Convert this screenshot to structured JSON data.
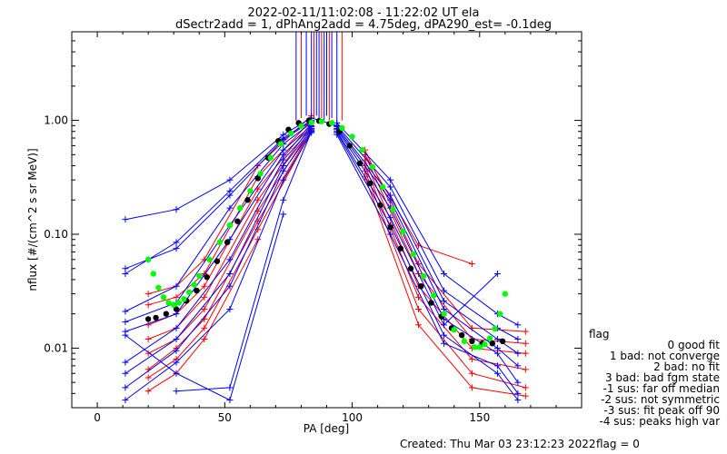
{
  "header": {
    "title": "2022-02-11/11:02:08 - 11:22:02 UT ela",
    "subtitle": "dSectr2add = 1, dPhAng2add = 4.75deg, dPA290_est=  -0.1deg"
  },
  "footer": {
    "created": "Created: Thu Mar 03 23:12:23 2022",
    "flag": "flag = 0"
  },
  "legend": {
    "title": "flag",
    "items": [
      "0 good fit",
      "1 bad: not converge",
      "2 bad: no fit",
      "3 bad: bad fgm state",
      "-1 sus: far off median",
      "-2 sus: not symmetric",
      "-3 sus: fit peak off 90",
      "-4 sus: peaks high var"
    ]
  },
  "colors": {
    "blue_series": "#0000ff",
    "red_series": "#ff0000",
    "black_points": "#000000",
    "green_fit": "#00ff00"
  },
  "chart_data": {
    "type": "line",
    "xlabel": "PA [deg]",
    "ylabel": "nflux [#/(cm^2 s sr MeV)]",
    "xlim": [
      -10,
      190
    ],
    "ylim": [
      0.003,
      6
    ],
    "yscale": "log",
    "xticks": [
      0,
      50,
      100,
      150
    ],
    "yticks": [
      0.01,
      0.1,
      1.0
    ],
    "ytick_labels": [
      "0.01",
      "0.10",
      "1.00"
    ],
    "grid": false,
    "black_points": {
      "x": [
        20,
        23,
        27,
        31,
        35,
        39,
        43,
        47,
        51,
        55,
        59,
        63,
        67,
        71,
        75,
        79,
        83,
        87,
        91,
        95,
        99,
        103,
        107,
        111,
        115,
        119,
        123,
        127,
        131,
        135,
        139,
        143,
        147,
        151,
        155,
        159
      ],
      "y": [
        0.018,
        0.0185,
        0.02,
        0.022,
        0.026,
        0.032,
        0.042,
        0.058,
        0.085,
        0.13,
        0.2,
        0.31,
        0.47,
        0.66,
        0.83,
        0.95,
        1.0,
        0.99,
        0.93,
        0.8,
        0.6,
        0.42,
        0.28,
        0.18,
        0.115,
        0.075,
        0.05,
        0.035,
        0.025,
        0.019,
        0.015,
        0.013,
        0.0115,
        0.011,
        0.011,
        0.0115
      ]
    },
    "green_fit": {
      "x": [
        20,
        22,
        24,
        26,
        28,
        30,
        32,
        34,
        36,
        38,
        40,
        44,
        48,
        52,
        56,
        60,
        64,
        68,
        72,
        76,
        80,
        84,
        88,
        92,
        96,
        100,
        104,
        108,
        112,
        116,
        120,
        124,
        128,
        132,
        136,
        140,
        144,
        148,
        150,
        152,
        154,
        156,
        158,
        160
      ],
      "y": [
        0.06,
        0.045,
        0.034,
        0.028,
        0.025,
        0.024,
        0.025,
        0.027,
        0.031,
        0.036,
        0.043,
        0.06,
        0.085,
        0.12,
        0.17,
        0.24,
        0.34,
        0.47,
        0.62,
        0.77,
        0.89,
        0.96,
        0.98,
        0.95,
        0.86,
        0.72,
        0.55,
        0.39,
        0.26,
        0.165,
        0.105,
        0.067,
        0.043,
        0.029,
        0.02,
        0.0145,
        0.0115,
        0.0102,
        0.0102,
        0.0108,
        0.0122,
        0.0148,
        0.02,
        0.03
      ]
    },
    "blue_series": [
      {
        "x": [
          11,
          31,
          52,
          73,
          84,
          94
        ],
        "y": [
          0.135,
          0.165,
          0.3,
          0.75,
          1.05,
          0.9
        ]
      },
      {
        "x": [
          11,
          31,
          52,
          73,
          84
        ],
        "y": [
          0.045,
          0.085,
          0.24,
          0.7,
          1.0
        ]
      },
      {
        "x": [
          11,
          31,
          52,
          73,
          84
        ],
        "y": [
          0.05,
          0.075,
          0.22,
          0.68,
          0.98
        ]
      },
      {
        "x": [
          11,
          31,
          52,
          73,
          84
        ],
        "y": [
          0.021,
          0.035,
          0.17,
          0.62,
          0.95
        ]
      },
      {
        "x": [
          11,
          31,
          52,
          73,
          84
        ],
        "y": [
          0.017,
          0.025,
          0.12,
          0.55,
          0.9
        ]
      },
      {
        "x": [
          11,
          31,
          52,
          73,
          84
        ],
        "y": [
          0.014,
          0.02,
          0.09,
          0.5,
          0.88
        ]
      },
      {
        "x": [
          11,
          31,
          52,
          73,
          84
        ],
        "y": [
          0.0075,
          0.015,
          0.06,
          0.45,
          0.85
        ]
      },
      {
        "x": [
          11,
          31,
          52,
          73,
          84
        ],
        "y": [
          0.006,
          0.012,
          0.045,
          0.4,
          0.83
        ]
      },
      {
        "x": [
          11,
          31,
          52,
          73,
          84
        ],
        "y": [
          0.0045,
          0.0095,
          0.035,
          0.36,
          0.8
        ]
      },
      {
        "x": [
          11,
          31,
          52,
          73,
          84
        ],
        "y": [
          0.0035,
          0.0075,
          0.022,
          0.3,
          0.78
        ]
      },
      {
        "x": [
          11,
          31,
          52,
          73
        ],
        "y": [
          0.013,
          0.006,
          0.0035,
          0.15
        ]
      },
      {
        "x": [
          31,
          52,
          73,
          84
        ],
        "y": [
          0.0042,
          0.0045,
          0.2,
          0.8
        ]
      },
      {
        "x": [
          94,
          115,
          136,
          157,
          165
        ],
        "y": [
          0.95,
          0.3,
          0.045,
          0.02,
          0.016
        ]
      },
      {
        "x": [
          94,
          115,
          136,
          157,
          165
        ],
        "y": [
          0.9,
          0.26,
          0.032,
          0.015,
          0.012
        ]
      },
      {
        "x": [
          94,
          115,
          136,
          157,
          165
        ],
        "y": [
          0.88,
          0.22,
          0.026,
          0.012,
          0.009
        ]
      },
      {
        "x": [
          94,
          115,
          136,
          157,
          165
        ],
        "y": [
          0.85,
          0.2,
          0.022,
          0.01,
          0.007
        ]
      },
      {
        "x": [
          94,
          115,
          136,
          157,
          165
        ],
        "y": [
          0.83,
          0.17,
          0.018,
          0.009,
          0.005
        ]
      },
      {
        "x": [
          94,
          115,
          136,
          157
        ],
        "y": [
          0.8,
          0.14,
          0.016,
          0.045
        ]
      },
      {
        "x": [
          94,
          115,
          136,
          157,
          165
        ],
        "y": [
          0.78,
          0.12,
          0.013,
          0.006,
          0.0035
        ]
      },
      {
        "x": [
          94,
          115,
          136,
          157,
          165
        ],
        "y": [
          0.75,
          0.1,
          0.011,
          0.007,
          0.004
        ]
      }
    ],
    "red_series": [
      {
        "x": [
          20,
          31,
          42,
          63,
          84
        ],
        "y": [
          0.03,
          0.035,
          0.06,
          0.4,
          1.1
        ]
      },
      {
        "x": [
          20,
          31,
          42,
          63,
          84
        ],
        "y": [
          0.024,
          0.028,
          0.045,
          0.32,
          1.0
        ]
      },
      {
        "x": [
          20,
          31,
          42,
          63,
          84
        ],
        "y": [
          0.016,
          0.02,
          0.035,
          0.25,
          0.95
        ]
      },
      {
        "x": [
          20,
          31,
          42,
          63,
          84
        ],
        "y": [
          0.012,
          0.015,
          0.028,
          0.2,
          0.9
        ]
      },
      {
        "x": [
          20,
          31,
          42,
          63,
          84
        ],
        "y": [
          0.009,
          0.012,
          0.022,
          0.16,
          0.85
        ]
      },
      {
        "x": [
          20,
          31,
          42,
          63,
          84
        ],
        "y": [
          0.0065,
          0.01,
          0.018,
          0.13,
          0.82
        ]
      },
      {
        "x": [
          20,
          31,
          42,
          63,
          84
        ],
        "y": [
          0.0055,
          0.008,
          0.015,
          0.11,
          0.8
        ]
      },
      {
        "x": [
          20,
          31,
          42,
          63
        ],
        "y": [
          0.0042,
          0.006,
          0.012,
          0.09
        ]
      },
      {
        "x": [
          105,
          126,
          147,
          168
        ],
        "y": [
          0.55,
          0.055,
          0.015,
          0.014
        ]
      },
      {
        "x": [
          105,
          126,
          147,
          168
        ],
        "y": [
          0.5,
          0.045,
          0.012,
          0.011
        ]
      },
      {
        "x": [
          105,
          126,
          147,
          168
        ],
        "y": [
          0.45,
          0.035,
          0.01,
          0.009
        ]
      },
      {
        "x": [
          105,
          126,
          147,
          168
        ],
        "y": [
          0.4,
          0.028,
          0.008,
          0.0065
        ]
      },
      {
        "x": [
          105,
          126,
          147,
          168
        ],
        "y": [
          0.36,
          0.022,
          0.006,
          0.0045
        ]
      },
      {
        "x": [
          105,
          126,
          147,
          168
        ],
        "y": [
          0.32,
          0.016,
          0.0045,
          0.0038
        ]
      },
      {
        "x": [
          105,
          126,
          147
        ],
        "y": [
          0.5,
          0.08,
          0.055
        ]
      }
    ],
    "spikes": {
      "x": [
        78,
        80,
        82,
        84,
        85,
        86,
        87,
        88,
        89,
        90,
        91,
        92,
        94,
        96
      ],
      "base_y": [
        1.0,
        1.05,
        1.1,
        1.1,
        1.05,
        1.1,
        1.0,
        1.05,
        1.0,
        1.1,
        1.0,
        1.05,
        0.95,
        1.0
      ]
    }
  }
}
